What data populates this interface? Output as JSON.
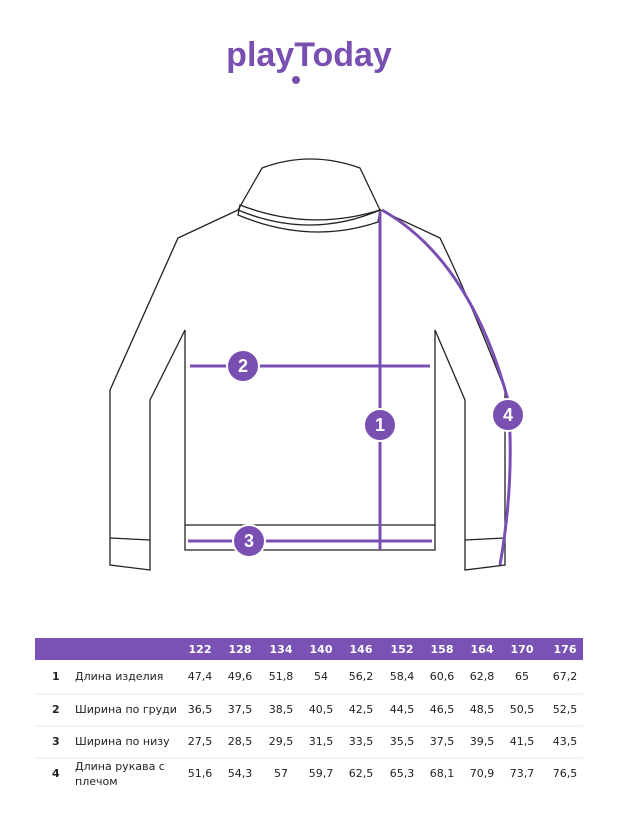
{
  "logo": "playToday",
  "diagram": {
    "markers": [
      "1",
      "2",
      "3",
      "4"
    ]
  },
  "table": {
    "header": [
      "122",
      "128",
      "134",
      "140",
      "146",
      "152",
      "158",
      "164",
      "170",
      "176"
    ],
    "rows": [
      {
        "num": "1",
        "label": "Длина изделия",
        "values": [
          "47,4",
          "49,6",
          "51,8",
          "54",
          "56,2",
          "58,4",
          "60,6",
          "62,8",
          "65",
          "67,2"
        ]
      },
      {
        "num": "2",
        "label": "Ширина по груди",
        "values": [
          "36,5",
          "37,5",
          "38,5",
          "40,5",
          "42,5",
          "44,5",
          "46,5",
          "48,5",
          "50,5",
          "52,5"
        ]
      },
      {
        "num": "3",
        "label": "Ширина по низу",
        "values": [
          "27,5",
          "28,5",
          "29,5",
          "31,5",
          "33,5",
          "35,5",
          "37,5",
          "39,5",
          "41,5",
          "43,5"
        ]
      },
      {
        "num": "4",
        "label": "Длина рукава с плечом",
        "values": [
          "51,6",
          "54,3",
          "57",
          "59,7",
          "62,5",
          "65,3",
          "68,1",
          "70,9",
          "73,7",
          "76,5"
        ]
      }
    ]
  }
}
